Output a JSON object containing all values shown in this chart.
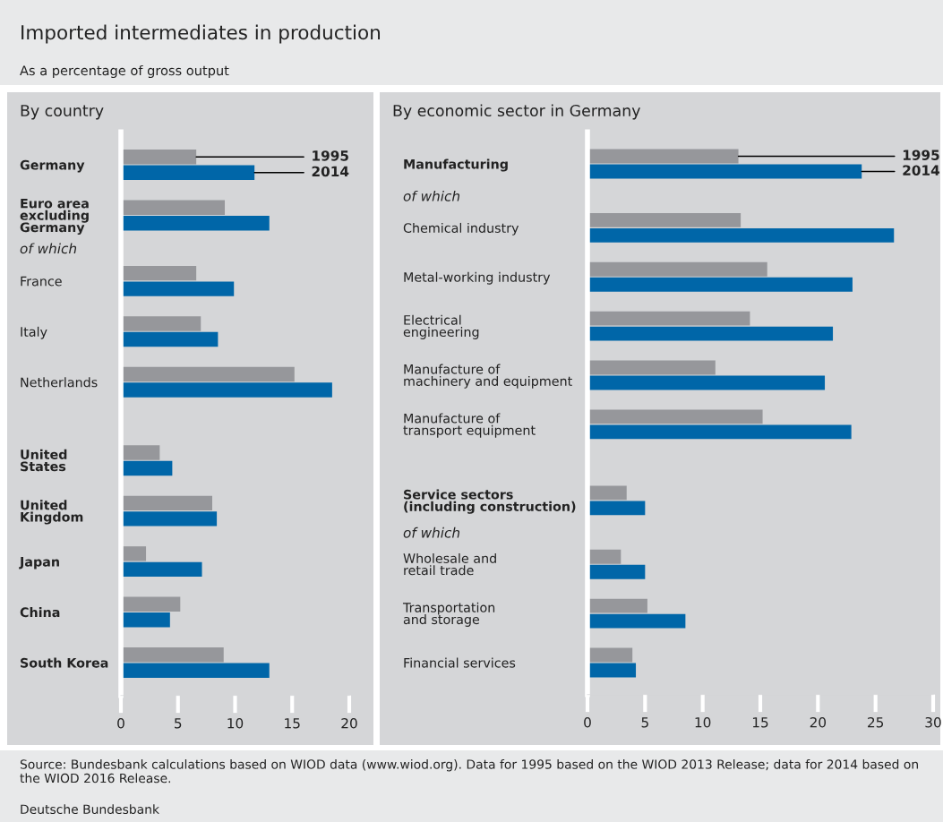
{
  "chart_data": [
    {
      "type": "other",
      "title": "Imported intermediates in production",
      "subtitle": "As a percentage of gross output",
      "annotations": [
        "Source: Bundesbank calculations based on WIOD data (www.wiod.org). Data for 1995 based on the WIOD 2013 Release; data for 2014 based on the WIOD 2016 Release.",
        "Deutsche Bundesbank"
      ]
    },
    {
      "type": "bar",
      "orientation": "horizontal",
      "title": "By country",
      "categories": [
        "Germany",
        "Euro area\nexcluding\nGermany",
        "France",
        "Italy",
        "Netherlands",
        "United\nStates",
        "United\nKingdom",
        "Japan",
        "China",
        "South Korea"
      ],
      "series": [
        {
          "name": "1995",
          "color": "#96979b",
          "values": [
            6.6,
            9.1,
            6.6,
            7.0,
            15.2,
            3.4,
            8.0,
            2.2,
            5.2,
            9.0
          ]
        },
        {
          "name": "2014",
          "color": "#0066a8",
          "values": [
            11.7,
            13.0,
            9.9,
            8.5,
            18.5,
            4.5,
            8.4,
            7.1,
            4.3,
            13.0
          ]
        }
      ],
      "xlim": [
        0,
        20
      ],
      "xticks": [
        0,
        5,
        10,
        15,
        20
      ],
      "annotations": [
        "of which"
      ]
    },
    {
      "type": "bar",
      "orientation": "horizontal",
      "title": "By economic sector in Germany",
      "categories": [
        "Manufacturing",
        "Chemical industry",
        "Metal-working industry",
        "Electrical\nengineering",
        "Manufacture of\nmachinery and equipment",
        "Manufacture of\ntransport equipment",
        "Service sectors\n(including construction)",
        "Wholesale and\nretail trade",
        "Transportation\nand storage",
        "Financial services"
      ],
      "series": [
        {
          "name": "1995",
          "color": "#96979b",
          "values": [
            13.1,
            13.3,
            15.6,
            14.1,
            11.1,
            15.2,
            3.4,
            2.9,
            5.2,
            3.9
          ]
        },
        {
          "name": "2014",
          "color": "#0066a8",
          "values": [
            23.8,
            26.6,
            23.0,
            21.3,
            20.6,
            22.9,
            5.0,
            5.0,
            8.5,
            4.2
          ]
        }
      ],
      "xlim": [
        0,
        30
      ],
      "xticks": [
        0,
        5,
        10,
        15,
        20,
        25,
        30
      ],
      "annotations": [
        "of which",
        "of which"
      ]
    }
  ]
}
